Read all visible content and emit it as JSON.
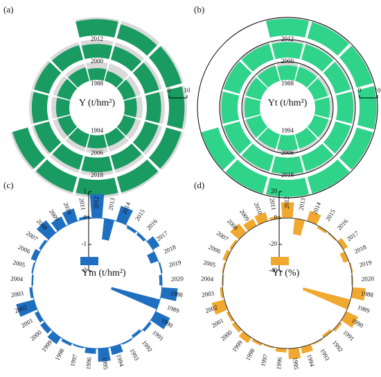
{
  "chart_data": [
    {
      "type": "spiral",
      "panel": "(a)",
      "label": "Y (t/hm²)",
      "color": "#1a9b62",
      "categories": [
        "1988",
        null,
        null,
        null,
        null,
        null,
        "1994",
        null,
        null,
        null,
        null,
        null,
        "2000",
        null,
        null,
        null,
        null,
        null,
        "2006",
        null,
        null,
        null,
        null,
        null,
        "2012",
        null,
        null,
        null,
        null,
        null,
        "2018",
        null,
        null
      ],
      "values": [
        6.5,
        5.8,
        7.0,
        6.8,
        6.9,
        7.0,
        7.2,
        7.5,
        7.3,
        7.4,
        7.6,
        7.8,
        7.6,
        7.7,
        8.2,
        7.9,
        7.8,
        8.0,
        8.1,
        8.0,
        8.6,
        8.5,
        8.6,
        8.3,
        9.0,
        8.0,
        8.9,
        8.6,
        8.7,
        8.9,
        8.6,
        8.8,
        8.8
      ],
      "rlim": [
        0,
        10
      ],
      "rticks": [
        0,
        10
      ]
    },
    {
      "type": "spiral",
      "panel": "(b)",
      "label": "Yt (t/hm²)",
      "color": "#2fd38a",
      "rings": true,
      "categories": [
        "1988",
        null,
        null,
        null,
        null,
        null,
        "1994",
        null,
        null,
        null,
        null,
        null,
        "2000",
        null,
        null,
        null,
        null,
        null,
        "2006",
        null,
        null,
        null,
        null,
        null,
        "2012",
        null,
        null,
        null,
        null,
        null,
        "2018",
        null,
        null
      ],
      "values": [
        8.0,
        8.1,
        7.9,
        8.2,
        8.3,
        8.2,
        8.3,
        8.4,
        8.5,
        8.5,
        8.6,
        8.7,
        8.6,
        8.8,
        8.7,
        8.9,
        8.8,
        8.9,
        9.0,
        8.9,
        9.1,
        9.0,
        9.2,
        9.1,
        9.3,
        9.2,
        9.3,
        9.4,
        9.3,
        9.5,
        9.4,
        9.5,
        9.6
      ],
      "rlim": [
        0,
        10
      ],
      "rticks": [
        0,
        10
      ]
    },
    {
      "type": "polar",
      "panel": "(c)",
      "label": "Ym (t/hm²)",
      "color": "#1f6fc0",
      "categories": [
        "1988",
        "1989",
        "1990",
        "1991",
        "1992",
        "1993",
        "1994",
        "1995",
        "1996",
        "1997",
        "1998",
        "1999",
        "2000",
        "2001",
        "2002",
        "2003",
        "2004",
        "2005",
        "2006",
        "2007",
        "2008",
        "2009",
        "2010",
        "2011",
        "2012",
        "2013",
        "2014",
        "2015",
        "2016",
        "2017",
        "2018",
        "2019",
        "2020"
      ],
      "values": [
        0.6,
        -1.9,
        0.6,
        0.1,
        -0.1,
        0.05,
        0.3,
        0.5,
        0.2,
        0.05,
        0.1,
        0.3,
        0.2,
        0.15,
        0.7,
        0.1,
        -0.05,
        0.05,
        0.2,
        0.1,
        0.6,
        0.4,
        0.5,
        0.1,
        0.9,
        -0.8,
        0.6,
        -0.1,
        -0.1,
        0.3,
        -0.3,
        0.05,
        -0.1
      ],
      "rlim": [
        -2,
        1
      ],
      "rticks": [
        1,
        0,
        -1,
        -2
      ]
    },
    {
      "type": "polar",
      "panel": "(d)",
      "label": "Yr (%)",
      "color": "#f0a830",
      "categories": [
        "1988",
        "1989",
        "1990",
        "1991",
        "1992",
        "1993",
        "1994",
        "1995",
        "1996",
        "1997",
        "1998",
        "1999",
        "2000",
        "2001",
        "2002",
        "2003",
        "2004",
        "2005",
        "2006",
        "2007",
        "2008",
        "2009",
        "2010",
        "2011",
        "2012",
        "2013",
        "2014",
        "2015",
        "2016",
        "2017",
        "2018",
        "2019",
        "2020"
      ],
      "values": [
        10,
        -37,
        10,
        2,
        -2,
        1,
        5,
        8,
        3,
        1,
        2,
        5,
        3,
        2,
        10,
        2,
        -1,
        1,
        3,
        2,
        9,
        6,
        7,
        2,
        12,
        -12,
        8,
        -2,
        -1,
        4,
        -4,
        1,
        -1
      ],
      "rlim": [
        -40,
        20
      ],
      "rticks": [
        20,
        0,
        -20,
        -40
      ]
    }
  ]
}
